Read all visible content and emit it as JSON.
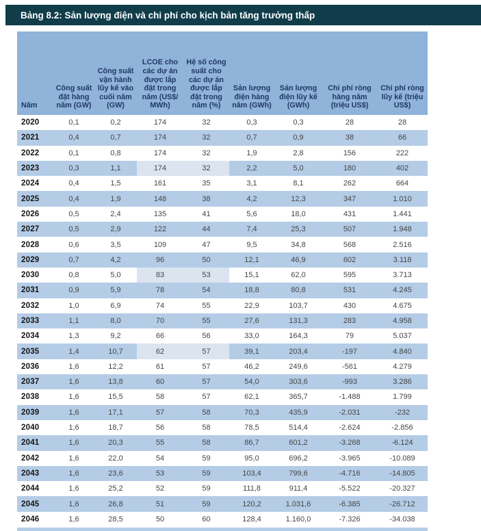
{
  "title": "Bảng 8.2: Sản lượng điện và chi phí cho kịch bản tăng trưởng thấp",
  "colors": {
    "title_bg": "#113D4B",
    "header_bg": "#8FB3D9",
    "band_bg": "#B4CCE6",
    "highlight_bg": "#DCE4F0",
    "header_text": "#1F3864"
  },
  "table": {
    "columns": [
      "Năm",
      "Công suất đặt hàng năm (GW)",
      "Công suất vận hành lũy kế vào cuối năm (GW)",
      "LCOE cho các dự án được lắp đặt trong năm (US$/ MWh)",
      "Hệ số công suất cho các dự án được lắp đặt trong năm (%)",
      "Sản lượng điện hàng năm (GWh)",
      "Sản lượng điện lũy kế (GWh)",
      "Chi phí ròng hàng năm (triệu US$)",
      "Chi phí ròng lũy kế (triệu US$)"
    ],
    "highlighted_years": [
      "2023",
      "2030",
      "2035"
    ],
    "highlighted_value_columns": [
      2,
      3
    ],
    "rows": [
      {
        "year": "2020",
        "values": [
          "0,1",
          "0,2",
          "174",
          "32",
          "0,3",
          "0,3",
          "28",
          "28"
        ]
      },
      {
        "year": "2021",
        "values": [
          "0,4",
          "0,7",
          "174",
          "32",
          "0,7",
          "0,9",
          "38",
          "66"
        ]
      },
      {
        "year": "2022",
        "values": [
          "0,1",
          "0,8",
          "174",
          "32",
          "1,9",
          "2,8",
          "156",
          "222"
        ]
      },
      {
        "year": "2023",
        "values": [
          "0,3",
          "1,1",
          "174",
          "32",
          "2,2",
          "5,0",
          "180",
          "402"
        ]
      },
      {
        "year": "2024",
        "values": [
          "0,4",
          "1,5",
          "161",
          "35",
          "3,1",
          "8,1",
          "262",
          "664"
        ]
      },
      {
        "year": "2025",
        "values": [
          "0,4",
          "1,9",
          "148",
          "38",
          "4,2",
          "12,3",
          "347",
          "1.010"
        ]
      },
      {
        "year": "2026",
        "values": [
          "0,5",
          "2,4",
          "135",
          "41",
          "5,6",
          "18,0",
          "431",
          "1.441"
        ]
      },
      {
        "year": "2027",
        "values": [
          "0,5",
          "2,9",
          "122",
          "44",
          "7,4",
          "25,3",
          "507",
          "1.948"
        ]
      },
      {
        "year": "2028",
        "values": [
          "0,6",
          "3,5",
          "109",
          "47",
          "9,5",
          "34,8",
          "568",
          "2.516"
        ]
      },
      {
        "year": "2029",
        "values": [
          "0,7",
          "4,2",
          "96",
          "50",
          "12,1",
          "46,9",
          "602",
          "3.118"
        ]
      },
      {
        "year": "2030",
        "values": [
          "0,8",
          "5,0",
          "83",
          "53",
          "15,1",
          "62,0",
          "595",
          "3.713"
        ]
      },
      {
        "year": "2031",
        "values": [
          "0,9",
          "5,9",
          "78",
          "54",
          "18,8",
          "80,8",
          "531",
          "4.245"
        ]
      },
      {
        "year": "2032",
        "values": [
          "1,0",
          "6,9",
          "74",
          "55",
          "22,9",
          "103,7",
          "430",
          "4.675"
        ]
      },
      {
        "year": "2033",
        "values": [
          "1,1",
          "8,0",
          "70",
          "55",
          "27,6",
          "131,3",
          "283",
          "4.958"
        ]
      },
      {
        "year": "2034",
        "values": [
          "1,3",
          "9,2",
          "66",
          "56",
          "33,0",
          "164,3",
          "79",
          "5.037"
        ]
      },
      {
        "year": "2035",
        "values": [
          "1,4",
          "10,7",
          "62",
          "57",
          "39,1",
          "203,4",
          "-197",
          "4.840"
        ]
      },
      {
        "year": "2036",
        "values": [
          "1,6",
          "12,2",
          "61",
          "57",
          "46,2",
          "249,6",
          "-561",
          "4.279"
        ]
      },
      {
        "year": "2037",
        "values": [
          "1,6",
          "13,8",
          "60",
          "57",
          "54,0",
          "303,6",
          "-993",
          "3.286"
        ]
      },
      {
        "year": "2038",
        "values": [
          "1,6",
          "15,5",
          "58",
          "57",
          "62,1",
          "365,7",
          "-1.488",
          "1.799"
        ]
      },
      {
        "year": "2039",
        "values": [
          "1,6",
          "17,1",
          "57",
          "58",
          "70,3",
          "435,9",
          "-2.031",
          "-232"
        ]
      },
      {
        "year": "2040",
        "values": [
          "1,6",
          "18,7",
          "56",
          "58",
          "78,5",
          "514,4",
          "-2.624",
          "-2.856"
        ]
      },
      {
        "year": "2041",
        "values": [
          "1,6",
          "20,3",
          "55",
          "58",
          "86,7",
          "601,2",
          "-3.268",
          "-6.124"
        ]
      },
      {
        "year": "2042",
        "values": [
          "1,6",
          "22,0",
          "54",
          "59",
          "95,0",
          "696,2",
          "-3.965",
          "-10.089"
        ]
      },
      {
        "year": "2043",
        "values": [
          "1,6",
          "23,6",
          "53",
          "59",
          "103,4",
          "799,6",
          "-4.716",
          "-14.805"
        ]
      },
      {
        "year": "2044",
        "values": [
          "1,6",
          "25,2",
          "52",
          "59",
          "111,8",
          "911,4",
          "-5.522",
          "-20.327"
        ]
      },
      {
        "year": "2045",
        "values": [
          "1,6",
          "26,8",
          "51",
          "59",
          "120,2",
          "1.031,6",
          "-6.385",
          "-26.712"
        ]
      },
      {
        "year": "2046",
        "values": [
          "1,6",
          "28,5",
          "50",
          "60",
          "128,4",
          "1.160,0",
          "-7.326",
          "-34.038"
        ]
      }
    ]
  }
}
